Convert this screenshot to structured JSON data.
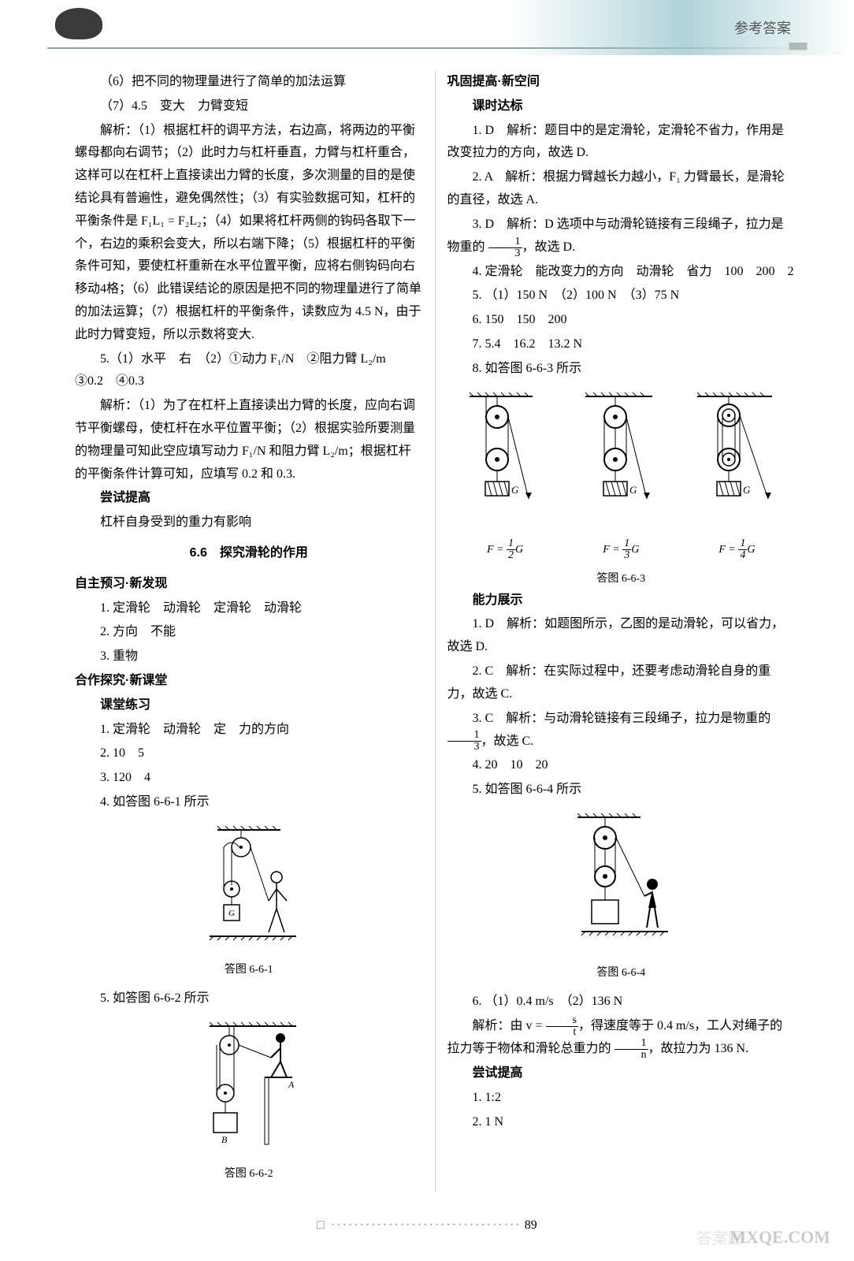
{
  "header": {
    "title": "参考答案",
    "ticks": "|||||||||||||||||||||||"
  },
  "left_column": {
    "lines": [
      {
        "cls": "para",
        "text": "（6）把不同的物理量进行了简单的加法运算"
      },
      {
        "cls": "para",
        "text": "（7）4.5　变大　力臂变短"
      },
      {
        "cls": "para italic-text",
        "text": "解析：（1）根据杠杆的调平方法，右边高，将两边的平衡螺母都向右调节；（2）此时力与杠杆垂直，力臂与杠杆重合，这样可以在杠杆上直接读出力臂的长度，多次测量的目的是使结论具有普遍性，避免偶然性；（3）有实验数据可知，杠杆的平衡条件是 F₁L₁ = F₂L₂；（4）如果将杠杆两侧的钩码各取下一个，右边的乘积会变大，所以右端下降；（5）根据杠杆的平衡条件可知，要使杠杆重新在水平位置平衡，应将右侧钩码向右移动4格；（6）此错误结论的原因是把不同的物理量进行了简单的加法运算；（7）根据杠杆的平衡条件，读数应为 4.5 N，由于此时力臂变短，所以示数将变大."
      },
      {
        "cls": "para",
        "text": "5.（1）水平　右　（2）①动力 F₁/N　②阻力臂 L₂/m　③0.2　④0.3"
      },
      {
        "cls": "para italic-text",
        "text": "解析：（1）为了在杠杆上直接读出力臂的长度，应向右调节平衡螺母，使杠杆在水平位置平衡；（2）根据实验所要测量的物理量可知此空应填写动力 F₁/N 和阻力臂 L₂/m；根据杠杆的平衡条件计算可知，应填写 0.2 和 0.3."
      },
      {
        "cls": "para bold-text",
        "text": "尝试提高"
      },
      {
        "cls": "para",
        "text": "杠杆自身受到的重力有影响"
      }
    ],
    "section_title": "6.6　探究滑轮的作用",
    "preview_header": "自主预习·新发现",
    "preview_lines": [
      "1. 定滑轮　动滑轮　定滑轮　动滑轮",
      "2. 方向　不能",
      "3. 重物"
    ],
    "explore_header": "合作探究·新课堂",
    "practice_header": "课堂练习",
    "practice_lines": [
      "1. 定滑轮　动滑轮　定　力的方向",
      "2. 10　5",
      "3. 120　4",
      "4. 如答图 6-6-1 所示"
    ],
    "fig1_caption": "答图 6-6-1",
    "line5": "5. 如答图 6-6-2 所示",
    "fig2_caption": "答图 6-6-2"
  },
  "right_column": {
    "consolidate_header": "巩固提高·新空间",
    "goal_header": "课时达标",
    "goal_lines": [
      {
        "cls": "para",
        "html": "1. D　<span class='italic-text'>解析：题目中的是定滑轮，定滑轮不省力，作用是改变拉力的方向，故选 D.</span>"
      },
      {
        "cls": "para",
        "html": "2. A　<span class='italic-text'>解析：根据力臂越长力越小，F₁ 力臂最长，是滑轮的直径，故选 A.</span>"
      },
      {
        "cls": "para",
        "html": "3. D　<span class='italic-text'>解析：D 选项中与动滑轮链接有三段绳子，拉力是物重的 <span class='frac'><span class='frac-num'>1</span><span class='frac-den'>3</span></span>，故选 D.</span>"
      },
      {
        "cls": "para",
        "html": "4. 定滑轮　能改变力的方向　动滑轮　省力　100　200　2"
      },
      {
        "cls": "para",
        "html": "5. （1）150 N　（2）100 N　（3）75 N"
      },
      {
        "cls": "para",
        "html": "6. 150　150　200"
      },
      {
        "cls": "para",
        "html": "7. 5.4　16.2　13.2 N"
      },
      {
        "cls": "para",
        "html": "8. 如答图 6-6-3 所示"
      }
    ],
    "fig3": {
      "caption": "答图 6-6-3",
      "labels": [
        "F = ½G",
        "F = ⅓G",
        "F = ¼G"
      ],
      "g_label": "G"
    },
    "ability_header": "能力展示",
    "ability_lines": [
      {
        "cls": "para",
        "html": "1. D　<span class='italic-text'>解析：如题图所示，乙图的是动滑轮，可以省力，故选 D.</span>"
      },
      {
        "cls": "para",
        "html": "2. C　<span class='italic-text'>解析：在实际过程中，还要考虑动滑轮自身的重力，故选 C.</span>"
      },
      {
        "cls": "para",
        "html": "3. C　<span class='italic-text'>解析：与动滑轮链接有三段绳子，拉力是物重的 <span class='frac'><span class='frac-num'>1</span><span class='frac-den'>3</span></span>，故选 C.</span>"
      },
      {
        "cls": "para",
        "html": "4. 20　10　20"
      },
      {
        "cls": "para",
        "html": "5. 如答图 6-6-4 所示"
      }
    ],
    "fig4_caption": "答图 6-6-4",
    "line6": "6. （1）0.4 m/s　（2）136 N",
    "line6_analysis": "解析：由 v = s/t，得速度等于 0.4 m/s，工人对绳子的拉力等于物体和滑轮总重力的 1/n，故拉力为 136 N.",
    "try_header": "尝试提高",
    "try_lines": [
      "1. 1:2",
      "2. 1 N"
    ]
  },
  "footer": {
    "page_num": "89",
    "watermark": "MXQE.COM",
    "watermark2": "答案圈"
  },
  "colors": {
    "text": "#000000",
    "bg": "#ffffff",
    "header_teal": "#b0d4d8",
    "line_color": "#8aa8b0"
  }
}
